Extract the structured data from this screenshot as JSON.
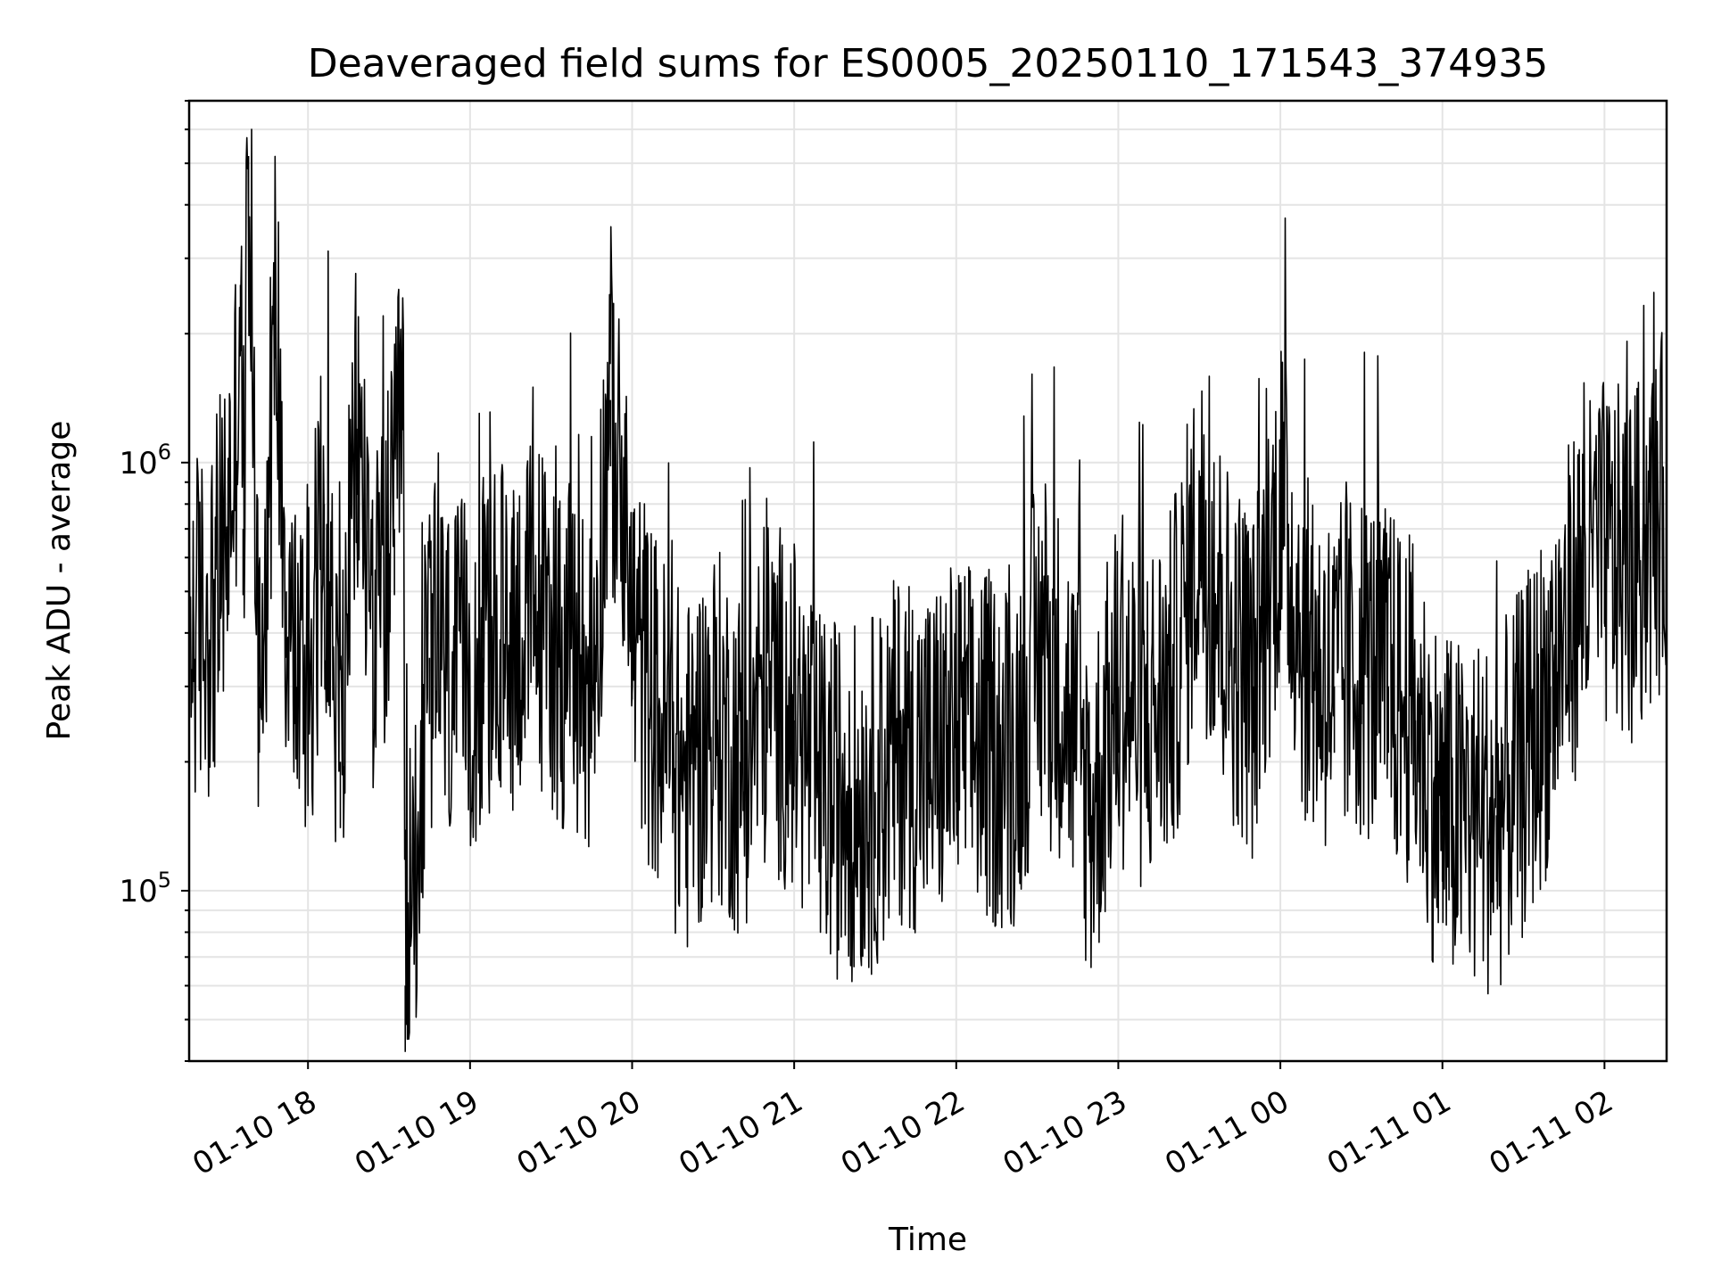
{
  "chart_data": {
    "type": "line",
    "title": "Deaveraged field sums for ES0005_20250110_171543_374935",
    "xlabel": "Time",
    "ylabel": "Peak ADU - average",
    "yscale": "log",
    "ylim": [
      40000,
      7000000
    ],
    "xlim": [
      "2025-01-10T17:16",
      "2025-01-11T02:23"
    ],
    "grid": true,
    "grid_minor": true,
    "line_color": "#000000",
    "x_ticks": [
      {
        "label": "01-10 18",
        "t": "2025-01-10T18:00"
      },
      {
        "label": "01-10 19",
        "t": "2025-01-10T19:00"
      },
      {
        "label": "01-10 20",
        "t": "2025-01-10T20:00"
      },
      {
        "label": "01-10 21",
        "t": "2025-01-10T21:00"
      },
      {
        "label": "01-10 22",
        "t": "2025-01-10T22:00"
      },
      {
        "label": "01-10 23",
        "t": "2025-01-10T23:00"
      },
      {
        "label": "01-11 00",
        "t": "2025-01-11T00:00"
      },
      {
        "label": "01-11 01",
        "t": "2025-01-11T01:00"
      },
      {
        "label": "01-11 02",
        "t": "2025-01-11T02:00"
      }
    ],
    "y_ticks": [
      {
        "base": "10",
        "exp": "5",
        "value": 100000
      },
      {
        "base": "10",
        "exp": "6",
        "value": 1000000
      }
    ],
    "series": [
      {
        "x": [
          "2025-01-10T17:16",
          "2025-01-10T17:25",
          "2025-01-10T17:30",
          "2025-01-10T17:33",
          "2025-01-10T17:35",
          "2025-01-10T17:36",
          "2025-01-10T17:38",
          "2025-01-10T17:42",
          "2025-01-10T17:45",
          "2025-01-10T17:48",
          "2025-01-10T17:52",
          "2025-01-10T17:55",
          "2025-01-10T18:00",
          "2025-01-10T18:06",
          "2025-01-10T18:12",
          "2025-01-10T18:18",
          "2025-01-10T18:25",
          "2025-01-10T18:32",
          "2025-01-10T18:35",
          "2025-01-10T18:36",
          "2025-01-10T18:45",
          "2025-01-10T18:55",
          "2025-01-10T19:05",
          "2025-01-10T19:15",
          "2025-01-10T19:25",
          "2025-01-10T19:35",
          "2025-01-10T19:45",
          "2025-01-10T19:52",
          "2025-01-10T20:00",
          "2025-01-10T20:10",
          "2025-01-10T20:20",
          "2025-01-10T20:30",
          "2025-01-10T20:40",
          "2025-01-10T20:50",
          "2025-01-10T21:00",
          "2025-01-10T21:10",
          "2025-01-10T21:20",
          "2025-01-10T21:30",
          "2025-01-10T21:40",
          "2025-01-10T21:50",
          "2025-01-10T22:00",
          "2025-01-10T22:10",
          "2025-01-10T22:20",
          "2025-01-10T22:30",
          "2025-01-10T22:40",
          "2025-01-10T22:50",
          "2025-01-10T23:00",
          "2025-01-10T23:10",
          "2025-01-10T23:20",
          "2025-01-10T23:30",
          "2025-01-10T23:40",
          "2025-01-10T23:50",
          "2025-01-11T00:00",
          "2025-01-11T00:10",
          "2025-01-11T00:20",
          "2025-01-11T00:30",
          "2025-01-11T00:40",
          "2025-01-11T00:50",
          "2025-01-11T01:00",
          "2025-01-11T01:10",
          "2025-01-11T01:20",
          "2025-01-11T01:30",
          "2025-01-11T01:40",
          "2025-01-11T01:50",
          "2025-01-11T02:00",
          "2025-01-11T02:10",
          "2025-01-11T02:23"
        ],
        "y": [
          400000,
          450000,
          700000,
          1100000,
          2600000,
          700000,
          5200000,
          300000,
          700000,
          2500000,
          500000,
          350000,
          300000,
          800000,
          200000,
          1200000,
          400000,
          700000,
          1700000,
          60000,
          350000,
          300000,
          350000,
          400000,
          450000,
          350000,
          300000,
          1400000,
          400000,
          250000,
          180000,
          250000,
          200000,
          300000,
          250000,
          170000,
          160000,
          170000,
          220000,
          200000,
          230000,
          220000,
          200000,
          350000,
          300000,
          150000,
          300000,
          250000,
          300000,
          700000,
          400000,
          300000,
          800000,
          350000,
          300000,
          350000,
          300000,
          250000,
          150000,
          150000,
          150000,
          200000,
          300000,
          500000,
          600000,
          550000,
          800000
        ]
      }
    ]
  }
}
